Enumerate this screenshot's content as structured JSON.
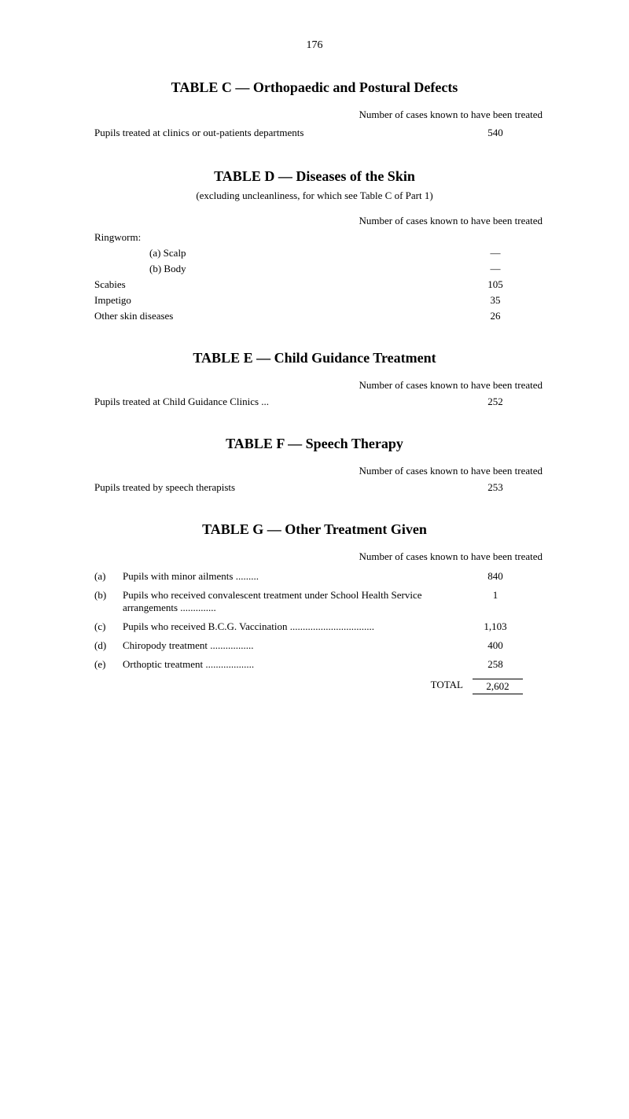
{
  "page_number": "176",
  "tables": {
    "c": {
      "title": "TABLE C — Orthopaedic and Postural Defects",
      "column_header": "Number of cases known to have been treated",
      "rows": [
        {
          "label": "Pupils treated at clinics or out-patients departments",
          "value": "540"
        }
      ]
    },
    "d": {
      "title": "TABLE D — Diseases of the Skin",
      "subtitle": "(excluding uncleanliness, for which see Table C of Part 1)",
      "column_header": "Number of cases known to have been treated",
      "ringworm_label": "Ringworm:",
      "rows": [
        {
          "label": "(a)   Scalp",
          "value": "—"
        },
        {
          "label": "(b)   Body",
          "value": "—"
        },
        {
          "label": "Scabies",
          "value": "105"
        },
        {
          "label": "Impetigo",
          "value": "35"
        },
        {
          "label": "Other skin diseases",
          "value": "26"
        }
      ]
    },
    "e": {
      "title": "TABLE E — Child Guidance Treatment",
      "column_header": "Number of cases known to have been treated",
      "rows": [
        {
          "label": "Pupils treated at Child Guidance Clinics ...",
          "value": "252"
        }
      ]
    },
    "f": {
      "title": "TABLE F — Speech Therapy",
      "column_header": "Number of cases known to have been treated",
      "rows": [
        {
          "label": "Pupils treated by speech therapists",
          "value": "253"
        }
      ]
    },
    "g": {
      "title": "TABLE G — Other Treatment Given",
      "column_header": "Number of cases known to have been treated",
      "items": [
        {
          "letter": "(a)",
          "text": "Pupils with minor ailments .........",
          "value": "840"
        },
        {
          "letter": "(b)",
          "text": "Pupils who received convalescent treatment under School Health Service arrangements ..............",
          "value": "1"
        },
        {
          "letter": "(c)",
          "text": "Pupils who received B.C.G. Vaccination .................................",
          "value": "1,103"
        },
        {
          "letter": "(d)",
          "text": "Chiropody treatment .................",
          "value": "400"
        },
        {
          "letter": "(e)",
          "text": "Orthoptic treatment ...................",
          "value": "258"
        }
      ],
      "total_label": "TOTAL",
      "total_value": "2,602"
    }
  }
}
